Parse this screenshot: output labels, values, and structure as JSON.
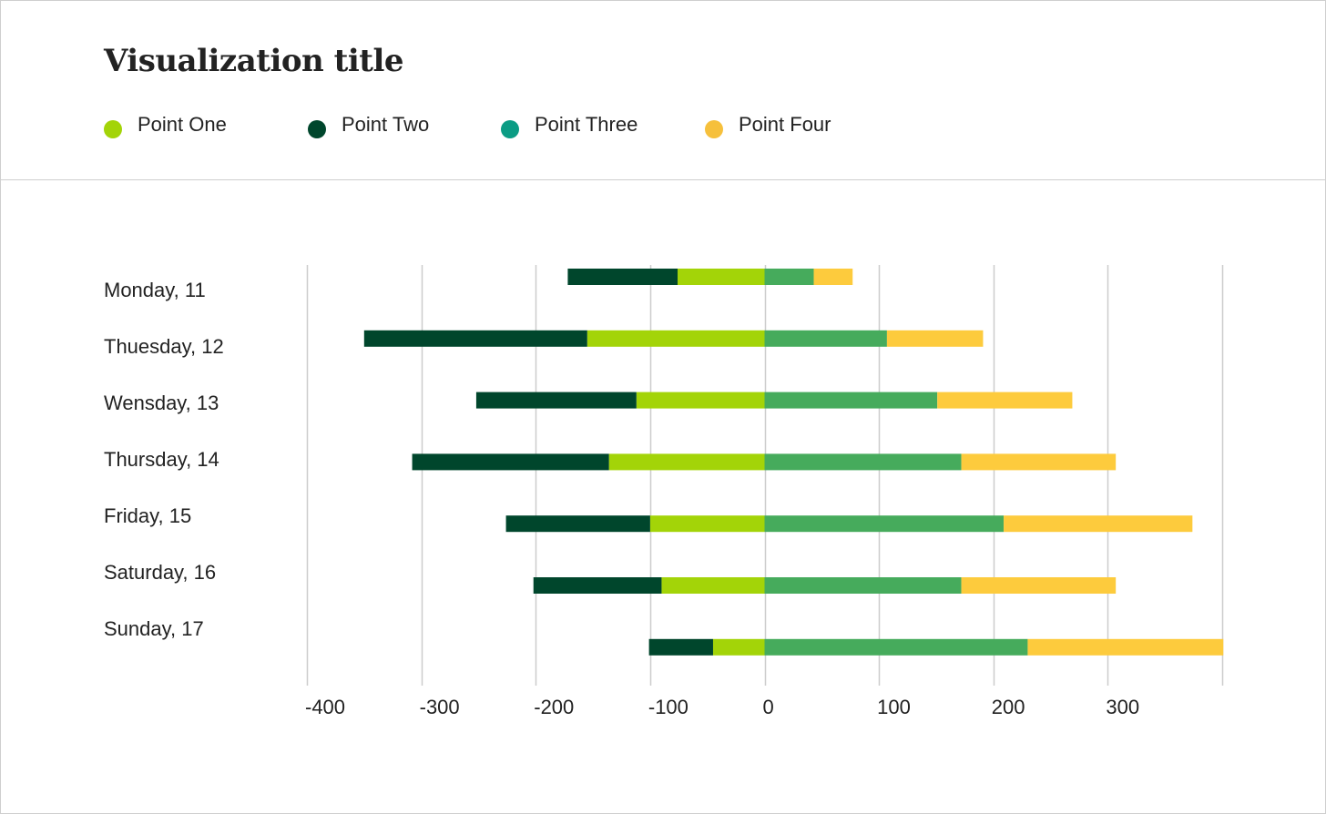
{
  "chart_data": {
    "type": "bar",
    "orientation": "horizontal",
    "stacked": true,
    "title": "Visualization title",
    "xlabel": "",
    "ylabel": "",
    "categories": [
      "Monday, 11",
      "Thuesday, 12",
      "Wensday, 13",
      "Thursday, 14",
      "Friday, 15",
      "Saturday, 16",
      "Sunday, 17"
    ],
    "xlim": [
      -400,
      400
    ],
    "x_ticks": [
      -400,
      -300,
      -200,
      -100,
      0,
      100,
      200,
      300
    ],
    "grid": true,
    "legend_position": "top-left",
    "series": [
      {
        "name": "Point One",
        "color": "#a3d408",
        "values": [
          -76,
          -155,
          -112,
          -136,
          -100,
          -90,
          -45
        ]
      },
      {
        "name": "Point Two",
        "color": "#00462c",
        "values": [
          -96,
          -195,
          -140,
          -172,
          -126,
          -112,
          -56
        ]
      },
      {
        "name": "Point Three",
        "color": "#46ab5c",
        "values": [
          43,
          107,
          151,
          172,
          209,
          172,
          230
        ]
      },
      {
        "name": "Point Four",
        "color": "#fdcb3d",
        "values": [
          34,
          84,
          118,
          135,
          165,
          135,
          171
        ]
      }
    ]
  },
  "legend_dot_colors": [
    "#a3d408",
    "#00462c",
    "#0b9c84",
    "#f6c03c"
  ]
}
